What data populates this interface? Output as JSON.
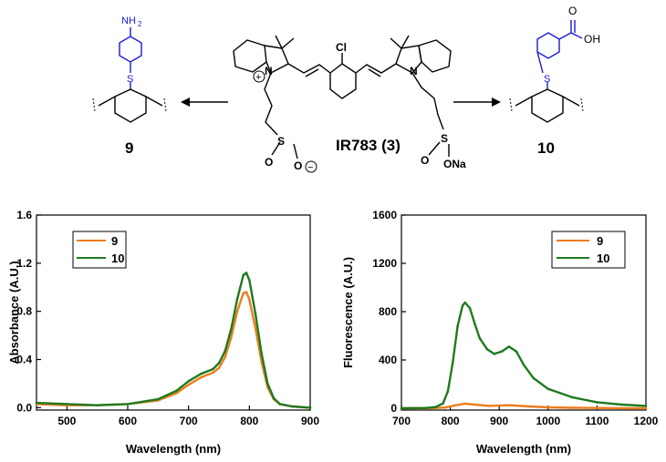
{
  "scheme": {
    "center_label": "IR783 (3)",
    "left_product_number": "9",
    "right_product_number": "10",
    "atoms": {
      "cl": "Cl",
      "n_plus": "N",
      "n": "N",
      "s": "S",
      "o": "O",
      "o_minus": "O",
      "ona": "ONa",
      "nh2": "NH",
      "nh2_sub": "2",
      "oh": "OH",
      "plus_sign": "+",
      "minus_sign": "−"
    }
  },
  "chart_data": [
    {
      "type": "line",
      "xlabel": "Wavelength (nm)",
      "ylabel": "Absorbance (A.U.)",
      "xlim": [
        450,
        900
      ],
      "ylim": [
        -0.02,
        1.6
      ],
      "x_ticks": [
        "500",
        "600",
        "700",
        "800",
        "900"
      ],
      "y_ticks": [
        "0.0",
        "0.4",
        "0.8",
        "1.2",
        "1.6"
      ],
      "legend": {
        "position": "top-left",
        "entries": [
          "9",
          "10"
        ]
      },
      "series": [
        {
          "name": "9",
          "color": "#ed7d1e",
          "x": [
            450,
            500,
            550,
            600,
            650,
            680,
            700,
            720,
            740,
            750,
            760,
            770,
            780,
            790,
            795,
            800,
            810,
            820,
            830,
            840,
            850,
            870,
            900
          ],
          "y": [
            0.03,
            0.02,
            0.02,
            0.03,
            0.06,
            0.12,
            0.19,
            0.25,
            0.29,
            0.33,
            0.42,
            0.58,
            0.8,
            0.95,
            0.96,
            0.9,
            0.66,
            0.38,
            0.17,
            0.07,
            0.03,
            0.01,
            0.0
          ]
        },
        {
          "name": "10",
          "color": "#1f7a1f",
          "x": [
            450,
            500,
            550,
            600,
            650,
            680,
            700,
            720,
            740,
            750,
            760,
            770,
            780,
            790,
            795,
            800,
            810,
            820,
            830,
            840,
            850,
            870,
            900
          ],
          "y": [
            0.04,
            0.03,
            0.02,
            0.03,
            0.07,
            0.14,
            0.22,
            0.28,
            0.32,
            0.37,
            0.47,
            0.65,
            0.9,
            1.1,
            1.12,
            1.06,
            0.78,
            0.45,
            0.2,
            0.08,
            0.03,
            0.01,
            0.0
          ]
        }
      ]
    },
    {
      "type": "line",
      "xlabel": "Wavelength (nm)",
      "ylabel": "Fluorescence (A.U.)",
      "xlim": [
        700,
        1200
      ],
      "ylim": [
        -15,
        1600
      ],
      "x_ticks": [
        "700",
        "800",
        "900",
        "1000",
        "1100",
        "1200"
      ],
      "y_ticks": [
        "0",
        "400",
        "800",
        "1200",
        "1600"
      ],
      "legend": {
        "position": "top-right",
        "entries": [
          "9",
          "10"
        ]
      },
      "series": [
        {
          "name": "9",
          "color": "#ed7d1e",
          "x": [
            700,
            760,
            790,
            810,
            830,
            850,
            880,
            920,
            960,
            1000,
            1050,
            1100,
            1150,
            1200
          ],
          "y": [
            0,
            1,
            6,
            24,
            38,
            30,
            20,
            25,
            15,
            8,
            4,
            2,
            1,
            0
          ]
        },
        {
          "name": "10",
          "color": "#1f7a1f",
          "x": [
            700,
            750,
            770,
            785,
            795,
            805,
            815,
            825,
            830,
            840,
            850,
            860,
            875,
            890,
            905,
            920,
            935,
            950,
            970,
            1000,
            1050,
            1100,
            1150,
            1200
          ],
          "y": [
            0,
            2,
            10,
            40,
            140,
            380,
            680,
            850,
            875,
            830,
            700,
            580,
            490,
            450,
            470,
            510,
            470,
            360,
            250,
            160,
            90,
            50,
            30,
            20
          ]
        }
      ]
    }
  ]
}
